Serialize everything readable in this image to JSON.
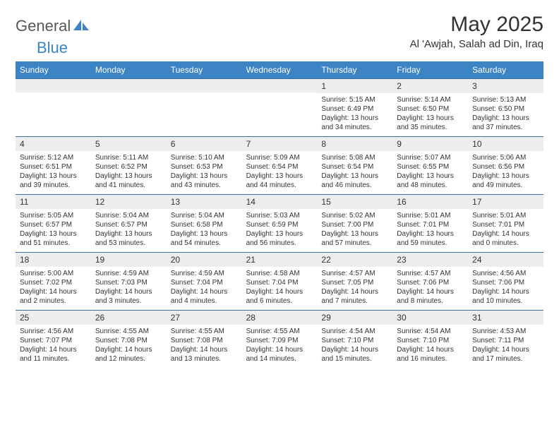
{
  "brand": {
    "general": "General",
    "blue": "Blue"
  },
  "title": "May 2025",
  "location": "Al 'Awjah, Salah ad Din, Iraq",
  "colors": {
    "header_bg": "#3d84c4",
    "band_bg": "#eceded",
    "band_border": "#3d6ea0",
    "text": "#333333",
    "logo_gray": "#57585a",
    "logo_blue": "#3d84c4"
  },
  "dayheaders": [
    "Sunday",
    "Monday",
    "Tuesday",
    "Wednesday",
    "Thursday",
    "Friday",
    "Saturday"
  ],
  "weeks": [
    [
      {
        "blank": true
      },
      {
        "blank": true
      },
      {
        "blank": true
      },
      {
        "blank": true
      },
      {
        "day": "1",
        "sunrise": "5:15 AM",
        "sunset": "6:49 PM",
        "daylight": "13 hours and 34 minutes."
      },
      {
        "day": "2",
        "sunrise": "5:14 AM",
        "sunset": "6:50 PM",
        "daylight": "13 hours and 35 minutes."
      },
      {
        "day": "3",
        "sunrise": "5:13 AM",
        "sunset": "6:50 PM",
        "daylight": "13 hours and 37 minutes."
      }
    ],
    [
      {
        "day": "4",
        "sunrise": "5:12 AM",
        "sunset": "6:51 PM",
        "daylight": "13 hours and 39 minutes."
      },
      {
        "day": "5",
        "sunrise": "5:11 AM",
        "sunset": "6:52 PM",
        "daylight": "13 hours and 41 minutes."
      },
      {
        "day": "6",
        "sunrise": "5:10 AM",
        "sunset": "6:53 PM",
        "daylight": "13 hours and 43 minutes."
      },
      {
        "day": "7",
        "sunrise": "5:09 AM",
        "sunset": "6:54 PM",
        "daylight": "13 hours and 44 minutes."
      },
      {
        "day": "8",
        "sunrise": "5:08 AM",
        "sunset": "6:54 PM",
        "daylight": "13 hours and 46 minutes."
      },
      {
        "day": "9",
        "sunrise": "5:07 AM",
        "sunset": "6:55 PM",
        "daylight": "13 hours and 48 minutes."
      },
      {
        "day": "10",
        "sunrise": "5:06 AM",
        "sunset": "6:56 PM",
        "daylight": "13 hours and 49 minutes."
      }
    ],
    [
      {
        "day": "11",
        "sunrise": "5:05 AM",
        "sunset": "6:57 PM",
        "daylight": "13 hours and 51 minutes."
      },
      {
        "day": "12",
        "sunrise": "5:04 AM",
        "sunset": "6:57 PM",
        "daylight": "13 hours and 53 minutes."
      },
      {
        "day": "13",
        "sunrise": "5:04 AM",
        "sunset": "6:58 PM",
        "daylight": "13 hours and 54 minutes."
      },
      {
        "day": "14",
        "sunrise": "5:03 AM",
        "sunset": "6:59 PM",
        "daylight": "13 hours and 56 minutes."
      },
      {
        "day": "15",
        "sunrise": "5:02 AM",
        "sunset": "7:00 PM",
        "daylight": "13 hours and 57 minutes."
      },
      {
        "day": "16",
        "sunrise": "5:01 AM",
        "sunset": "7:01 PM",
        "daylight": "13 hours and 59 minutes."
      },
      {
        "day": "17",
        "sunrise": "5:01 AM",
        "sunset": "7:01 PM",
        "daylight": "14 hours and 0 minutes."
      }
    ],
    [
      {
        "day": "18",
        "sunrise": "5:00 AM",
        "sunset": "7:02 PM",
        "daylight": "14 hours and 2 minutes."
      },
      {
        "day": "19",
        "sunrise": "4:59 AM",
        "sunset": "7:03 PM",
        "daylight": "14 hours and 3 minutes."
      },
      {
        "day": "20",
        "sunrise": "4:59 AM",
        "sunset": "7:04 PM",
        "daylight": "14 hours and 4 minutes."
      },
      {
        "day": "21",
        "sunrise": "4:58 AM",
        "sunset": "7:04 PM",
        "daylight": "14 hours and 6 minutes."
      },
      {
        "day": "22",
        "sunrise": "4:57 AM",
        "sunset": "7:05 PM",
        "daylight": "14 hours and 7 minutes."
      },
      {
        "day": "23",
        "sunrise": "4:57 AM",
        "sunset": "7:06 PM",
        "daylight": "14 hours and 8 minutes."
      },
      {
        "day": "24",
        "sunrise": "4:56 AM",
        "sunset": "7:06 PM",
        "daylight": "14 hours and 10 minutes."
      }
    ],
    [
      {
        "day": "25",
        "sunrise": "4:56 AM",
        "sunset": "7:07 PM",
        "daylight": "14 hours and 11 minutes."
      },
      {
        "day": "26",
        "sunrise": "4:55 AM",
        "sunset": "7:08 PM",
        "daylight": "14 hours and 12 minutes."
      },
      {
        "day": "27",
        "sunrise": "4:55 AM",
        "sunset": "7:08 PM",
        "daylight": "14 hours and 13 minutes."
      },
      {
        "day": "28",
        "sunrise": "4:55 AM",
        "sunset": "7:09 PM",
        "daylight": "14 hours and 14 minutes."
      },
      {
        "day": "29",
        "sunrise": "4:54 AM",
        "sunset": "7:10 PM",
        "daylight": "14 hours and 15 minutes."
      },
      {
        "day": "30",
        "sunrise": "4:54 AM",
        "sunset": "7:10 PM",
        "daylight": "14 hours and 16 minutes."
      },
      {
        "day": "31",
        "sunrise": "4:53 AM",
        "sunset": "7:11 PM",
        "daylight": "14 hours and 17 minutes."
      }
    ]
  ],
  "labels": {
    "sunrise": "Sunrise: ",
    "sunset": "Sunset: ",
    "daylight": "Daylight: "
  }
}
